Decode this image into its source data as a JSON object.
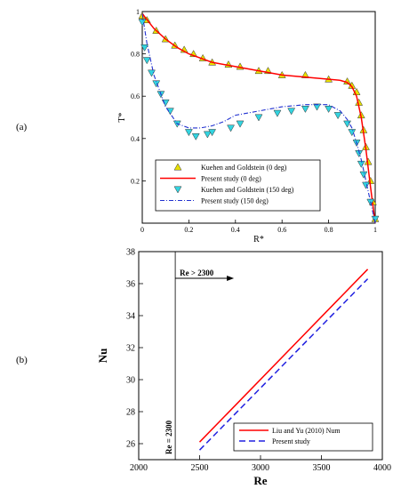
{
  "figure": {
    "panel_a_label": "(a)",
    "panel_b_label": "(b)"
  },
  "chart_data": [
    {
      "type": "scatter",
      "xlabel": "R*",
      "ylabel": "T*",
      "xlim": [
        0,
        1
      ],
      "ylim": [
        0,
        1
      ],
      "xticks": [
        "0",
        "0.2",
        "0.4",
        "0.6",
        "0.8",
        "1"
      ],
      "yticks": [
        "0.2",
        "0.4",
        "0.6",
        "0.8",
        "1"
      ],
      "grid": false,
      "legend_position": "bottom-center",
      "series": [
        {
          "name": "Kuehen and Goldstein (0 deg)",
          "kind": "marker",
          "marker": "triangle-up",
          "color": "#e8e000",
          "x": [
            0.0,
            0.02,
            0.06,
            0.1,
            0.14,
            0.18,
            0.22,
            0.26,
            0.3,
            0.37,
            0.42,
            0.5,
            0.54,
            0.6,
            0.7,
            0.8,
            0.88,
            0.9,
            0.92,
            0.93,
            0.94,
            0.95,
            0.96,
            0.97,
            0.98,
            0.99,
            1.0
          ],
          "y": [
            0.98,
            0.96,
            0.91,
            0.87,
            0.84,
            0.82,
            0.8,
            0.78,
            0.76,
            0.75,
            0.74,
            0.72,
            0.72,
            0.7,
            0.7,
            0.68,
            0.67,
            0.65,
            0.62,
            0.57,
            0.51,
            0.44,
            0.36,
            0.29,
            0.2,
            0.1,
            0.02
          ]
        },
        {
          "name": "Present study (0 deg)",
          "kind": "line",
          "color": "#ff0000",
          "x": [
            0,
            0.05,
            0.1,
            0.15,
            0.2,
            0.3,
            0.4,
            0.5,
            0.6,
            0.7,
            0.8,
            0.85,
            0.88,
            0.9,
            0.92,
            0.94,
            0.96,
            0.98,
            1.0
          ],
          "y": [
            0.99,
            0.92,
            0.87,
            0.83,
            0.8,
            0.76,
            0.74,
            0.72,
            0.7,
            0.69,
            0.68,
            0.675,
            0.665,
            0.645,
            0.6,
            0.5,
            0.35,
            0.17,
            0.0
          ]
        },
        {
          "name": "Kuehen and Goldstein (150 deg)",
          "kind": "marker",
          "marker": "triangle-down",
          "color": "#33d4e0",
          "x": [
            0.0,
            0.01,
            0.02,
            0.04,
            0.06,
            0.08,
            0.1,
            0.12,
            0.15,
            0.2,
            0.23,
            0.28,
            0.3,
            0.38,
            0.42,
            0.5,
            0.58,
            0.64,
            0.7,
            0.75,
            0.8,
            0.84,
            0.88,
            0.9,
            0.92,
            0.93,
            0.94,
            0.95,
            0.96,
            0.98,
            1.0
          ],
          "y": [
            0.95,
            0.83,
            0.77,
            0.71,
            0.66,
            0.61,
            0.57,
            0.53,
            0.47,
            0.43,
            0.41,
            0.42,
            0.43,
            0.45,
            0.47,
            0.5,
            0.52,
            0.53,
            0.54,
            0.55,
            0.54,
            0.51,
            0.47,
            0.43,
            0.38,
            0.33,
            0.28,
            0.23,
            0.18,
            0.1,
            0.02
          ]
        },
        {
          "name": "Present study (150 deg)",
          "kind": "line",
          "dashed": true,
          "color": "#2030d0",
          "x": [
            0,
            0.02,
            0.05,
            0.1,
            0.15,
            0.2,
            0.25,
            0.3,
            0.35,
            0.4,
            0.5,
            0.6,
            0.7,
            0.75,
            0.8,
            0.85,
            0.88,
            0.9,
            0.92,
            0.94,
            0.96,
            0.98,
            1.0
          ],
          "y": [
            0.99,
            0.85,
            0.7,
            0.55,
            0.47,
            0.45,
            0.45,
            0.46,
            0.48,
            0.51,
            0.53,
            0.55,
            0.56,
            0.56,
            0.56,
            0.53,
            0.49,
            0.45,
            0.38,
            0.3,
            0.2,
            0.1,
            0.0
          ]
        }
      ]
    },
    {
      "type": "line",
      "xlabel": "Re",
      "ylabel": "Nu",
      "xlim": [
        2000,
        4000
      ],
      "ylim": [
        25,
        38
      ],
      "xticks": [
        "2000",
        "2500",
        "3000",
        "3500",
        "4000"
      ],
      "yticks": [
        "26",
        "28",
        "30",
        "32",
        "34",
        "36",
        "38"
      ],
      "grid": false,
      "legend_position": "bottom-right",
      "annotations": {
        "vline_x": 2300,
        "vline_label": "Re = 2300",
        "arrow_label": "Re > 2300"
      },
      "series": [
        {
          "name": "Liu and Yu (2010) Num",
          "color": "#ff0000",
          "dashed": false,
          "x": [
            2500,
            3880
          ],
          "y": [
            26.1,
            36.9
          ]
        },
        {
          "name": "Present study",
          "color": "#2020e0",
          "dashed": true,
          "x": [
            2500,
            3880
          ],
          "y": [
            25.6,
            36.3
          ]
        }
      ]
    }
  ]
}
